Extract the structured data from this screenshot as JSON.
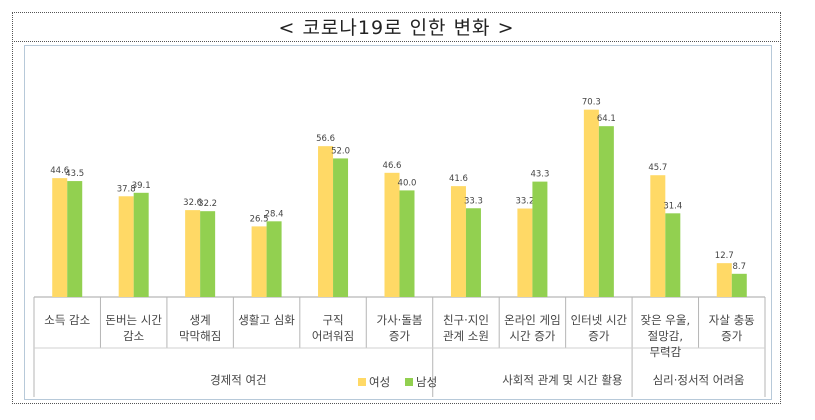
{
  "title": "< 코로나19로 인한 변화 >",
  "chart_data": {
    "type": "bar",
    "categories": [
      [
        "소득 감소"
      ],
      [
        "돈버는 시간",
        "감소"
      ],
      [
        "생계",
        "막막해짐"
      ],
      [
        "생활고 심화"
      ],
      [
        "구직",
        "어려워짐"
      ],
      [
        "가사·돌봄",
        "증가"
      ],
      [
        "친구·지인",
        "관계 소원"
      ],
      [
        "온라인 게임",
        "시간 증가"
      ],
      [
        "인터넷 시간",
        "증가"
      ],
      [
        "잦은 우울,",
        "절망감,",
        "무력감"
      ],
      [
        "자살 충동",
        "증가"
      ]
    ],
    "series": [
      {
        "name": "여성",
        "color": "#FFD966",
        "values": [
          44.6,
          37.8,
          32.6,
          26.5,
          56.6,
          46.6,
          41.6,
          33.2,
          70.3,
          45.7,
          12.7
        ]
      },
      {
        "name": "남성",
        "color": "#92D050",
        "values": [
          43.5,
          39.1,
          32.2,
          28.4,
          52.0,
          40.0,
          33.3,
          43.3,
          64.1,
          31.4,
          8.7
        ]
      }
    ],
    "groups": [
      {
        "label": "경제적 여건",
        "start": 0,
        "end": 5
      },
      {
        "label": "사회적 관계 및 시간 활용",
        "start": 6,
        "end": 8
      },
      {
        "label": "심리·정서적 어려움",
        "start": 9,
        "end": 10
      }
    ],
    "ylim": [
      0,
      80
    ],
    "grid": false,
    "legend_position": "bottom-center"
  }
}
